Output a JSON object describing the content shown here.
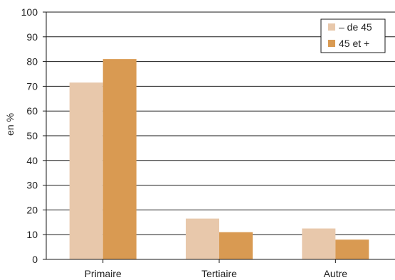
{
  "chart_data": {
    "type": "bar",
    "title": "",
    "xlabel": "",
    "ylabel": "en %",
    "ylim": [
      0,
      100
    ],
    "yticks": [
      0,
      10,
      20,
      30,
      40,
      50,
      60,
      70,
      80,
      90,
      100
    ],
    "grid": true,
    "legend_position": "top-right",
    "categories": [
      "Primaire",
      "Tertiaire",
      "Autre"
    ],
    "series": [
      {
        "name": "– de 45",
        "color": "#e8c8ab",
        "values": [
          71.5,
          16.5,
          12.5
        ]
      },
      {
        "name": "45 et +",
        "color": "#d99a52",
        "values": [
          81,
          11,
          8
        ]
      }
    ]
  }
}
